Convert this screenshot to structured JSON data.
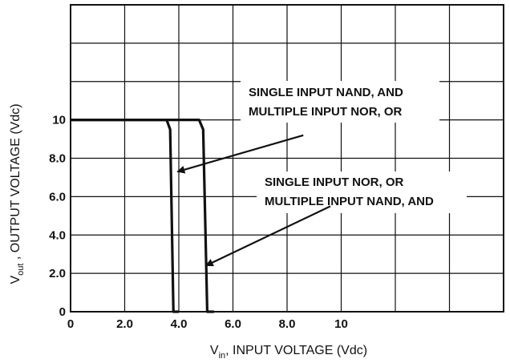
{
  "chart_data": {
    "type": "line",
    "xlabel": {
      "main": "V",
      "sub": "in",
      "rest": ", INPUT VOLTAGE (Vdc)"
    },
    "ylabel": {
      "main": "V",
      "sub": "out",
      "rest": " ,  OUTPUT VOLTAGE (Vdc)"
    },
    "xlim": [
      0,
      16
    ],
    "ylim": [
      0,
      16
    ],
    "grid": true,
    "x_ticks": [
      0,
      2.0,
      4.0,
      6.0,
      8.0,
      10
    ],
    "x_tick_labels": [
      "0",
      "2.0",
      "4.0",
      "6.0",
      "8.0",
      "10"
    ],
    "y_ticks": [
      0,
      2.0,
      4.0,
      6.0,
      8.0,
      10
    ],
    "y_tick_labels": [
      "0",
      "2.0",
      "4.0",
      "6.0",
      "8.0",
      "10"
    ],
    "series": [
      {
        "points": [
          [
            0,
            10
          ],
          [
            3.55,
            10
          ],
          [
            3.68,
            9.5
          ],
          [
            3.8,
            0
          ],
          [
            4.0,
            0
          ]
        ],
        "color": "#111111"
      },
      {
        "points": [
          [
            0,
            10
          ],
          [
            4.75,
            10
          ],
          [
            4.9,
            9.5
          ],
          [
            5.05,
            0
          ],
          [
            5.3,
            0
          ]
        ],
        "color": "#111111"
      }
    ],
    "annotations": [
      {
        "lines": [
          "SINGLE INPUT NAND, AND",
          "MULTIPLE INPUT NOR, OR"
        ],
        "arrow_from": [
          8.6,
          9.2
        ],
        "arrow_to": [
          3.95,
          7.3
        ]
      },
      {
        "lines": [
          "SINGLE INPUT NOR, OR",
          "MULTIPLE INPUT NAND, AND"
        ],
        "arrow_from": [
          9.6,
          5.5
        ],
        "arrow_to": [
          5.0,
          2.4
        ]
      }
    ]
  }
}
